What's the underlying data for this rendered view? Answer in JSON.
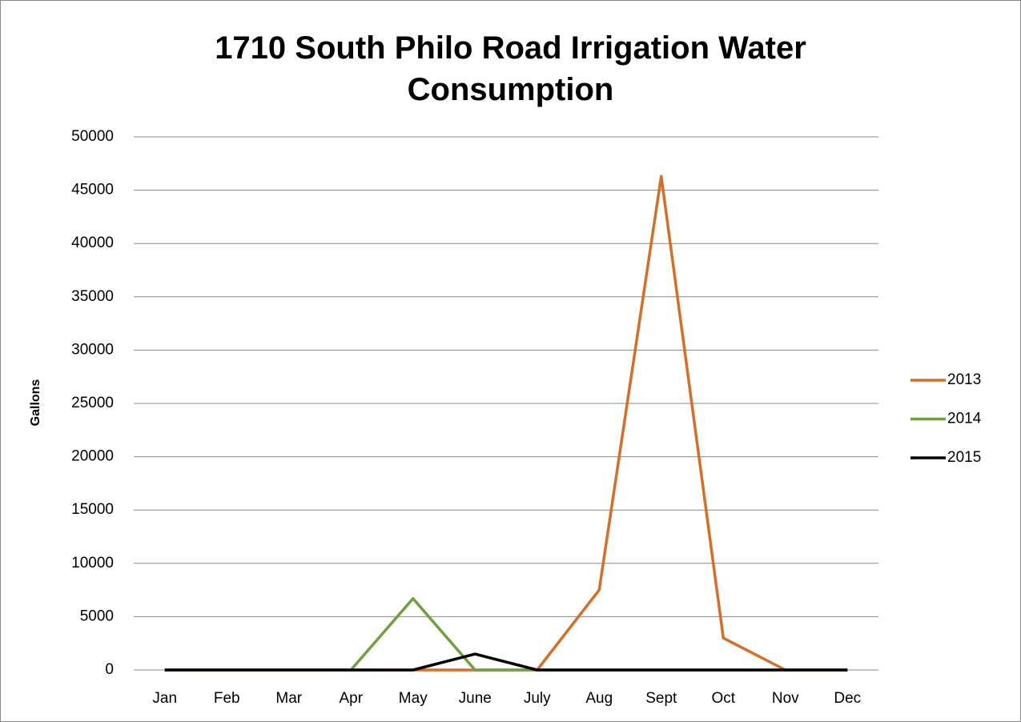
{
  "chart_data": {
    "type": "line",
    "title": "1710 South Philo Road Irrigation Water Consumption",
    "y_label": "Gallons",
    "categories": [
      "Jan",
      "Feb",
      "Mar",
      "Apr",
      "May",
      "June",
      "July",
      "Aug",
      "Sept",
      "Oct",
      "Nov",
      "Dec"
    ],
    "series": [
      {
        "name": "2013",
        "color": "#d46f2a",
        "values": [
          0,
          0,
          0,
          0,
          0,
          0,
          0,
          7500,
          46300,
          3000,
          0,
          0
        ]
      },
      {
        "name": "2014",
        "color": "#6fa040",
        "values": [
          0,
          0,
          0,
          0,
          6700,
          0,
          0,
          0,
          0,
          0,
          0,
          0
        ]
      },
      {
        "name": "2015",
        "color": "#000000",
        "values": [
          0,
          0,
          0,
          0,
          0,
          1500,
          0,
          0,
          0,
          0,
          0,
          0
        ]
      }
    ],
    "ylim": [
      0,
      50000
    ],
    "yticks": [
      0,
      5000,
      10000,
      15000,
      20000,
      25000,
      30000,
      35000,
      40000,
      45000,
      50000
    ],
    "grid": true,
    "legend": "right"
  }
}
